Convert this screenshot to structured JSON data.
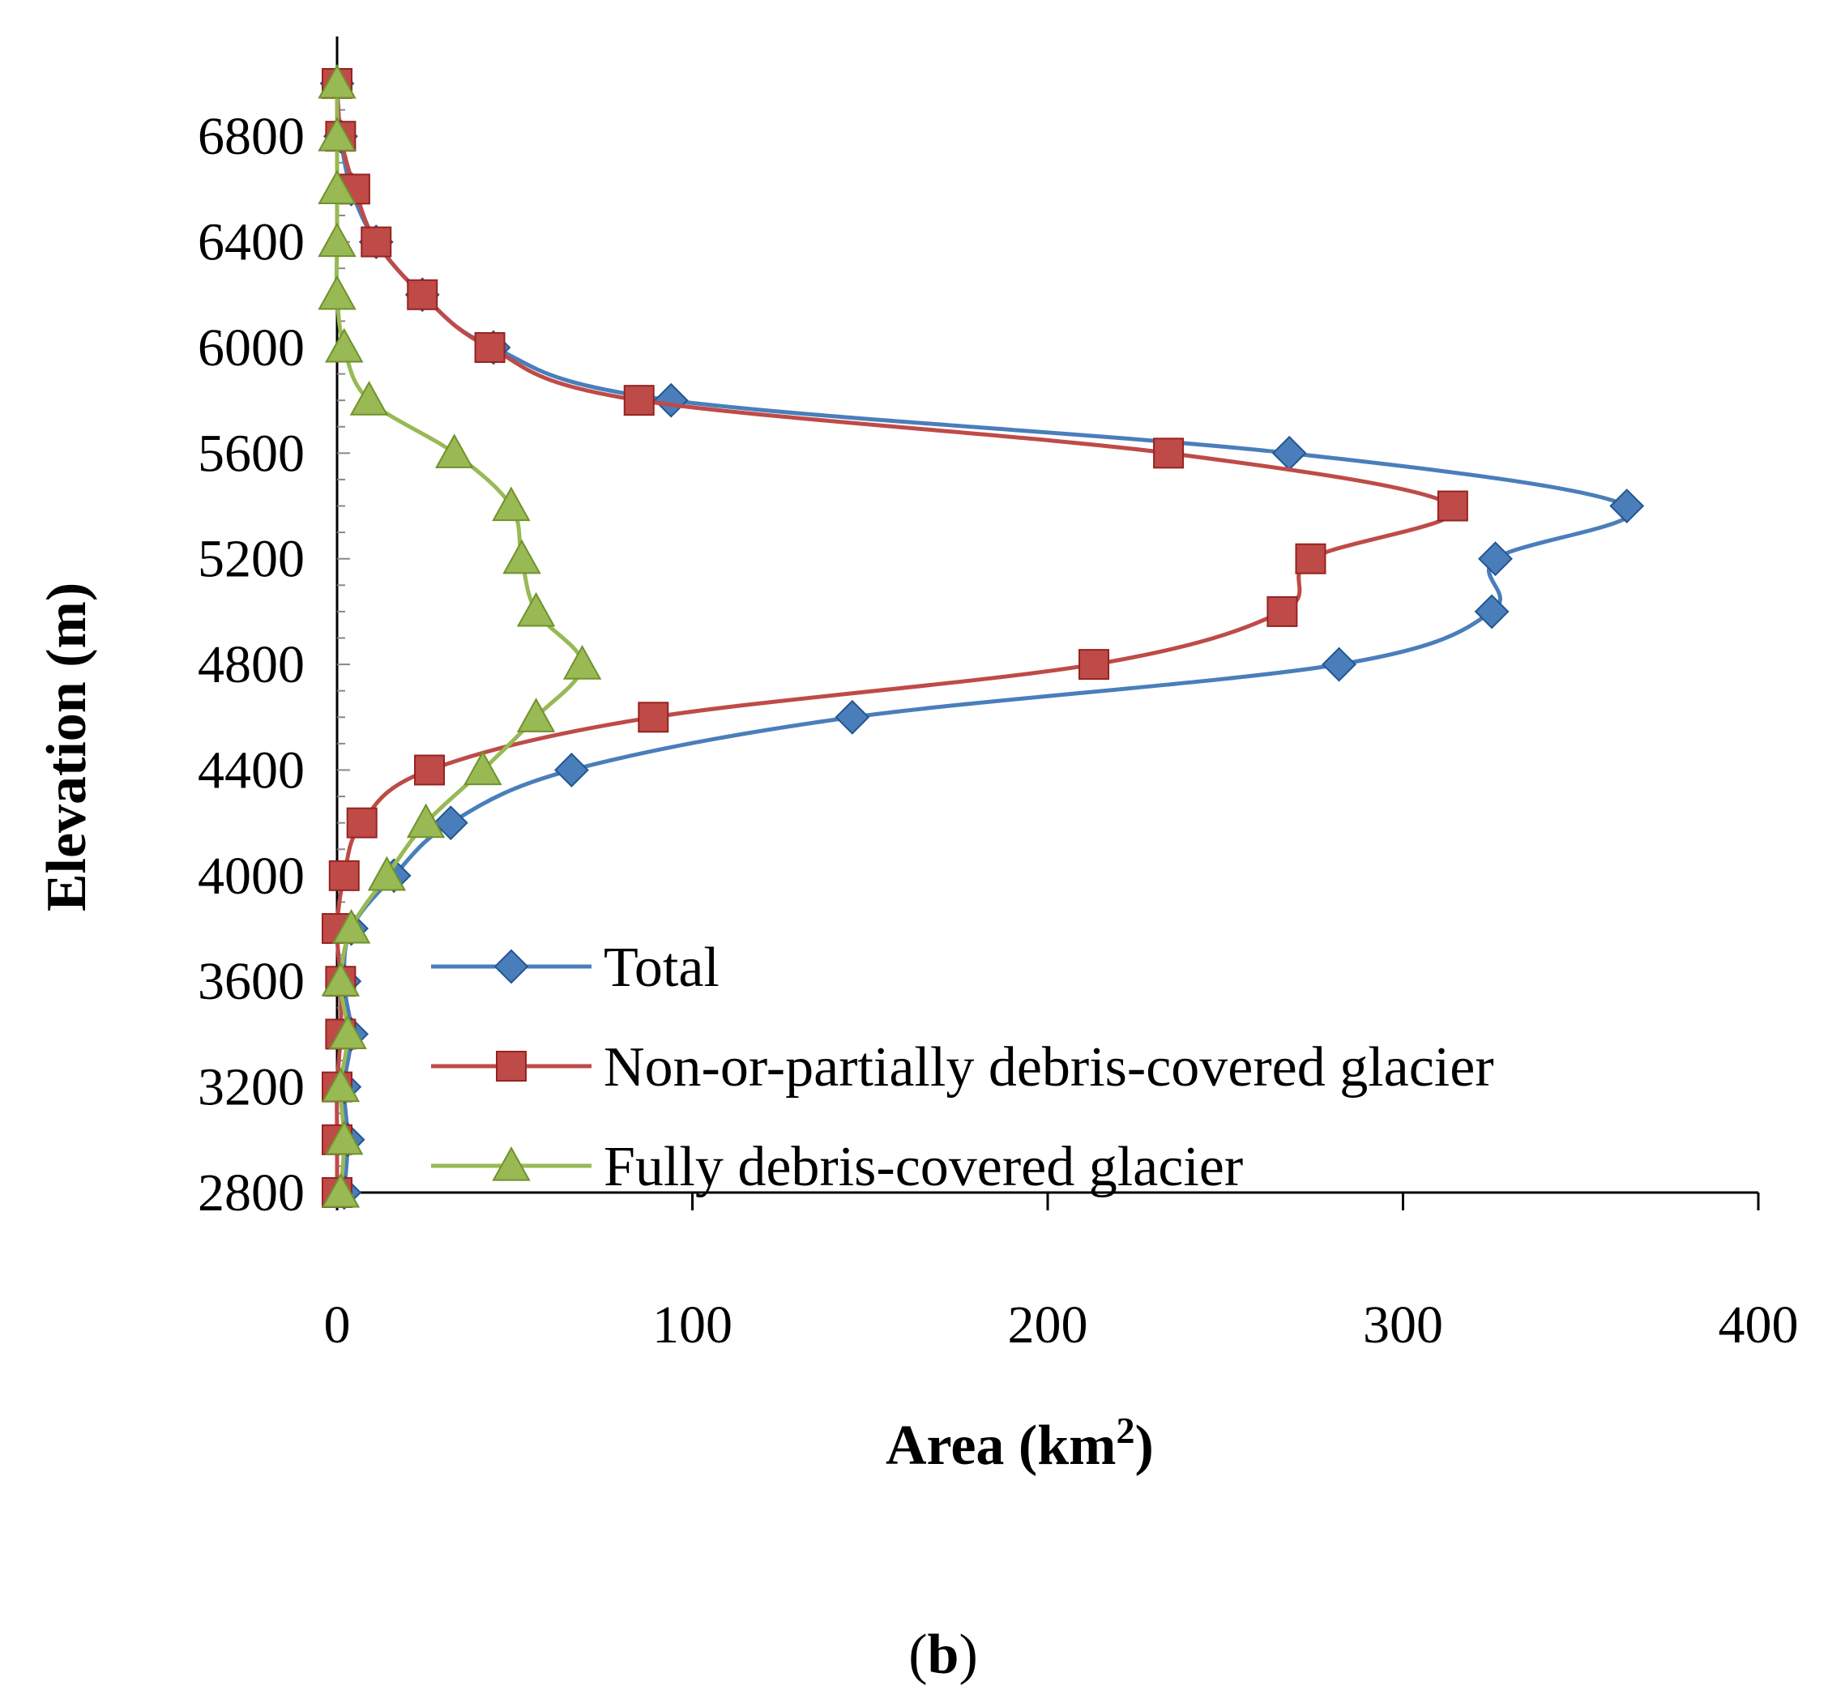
{
  "chart_data": {
    "type": "line",
    "orientation": "horizontal-profile",
    "panel_label_letter": "b",
    "xlabel_main": "Area (km",
    "xlabel_sup": "2",
    "xlabel_end": ")",
    "ylabel": "Elevation (m)",
    "xlim": [
      0,
      400
    ],
    "ylim": [
      2800,
      7000
    ],
    "x_ticks": [
      0,
      100,
      200,
      300,
      400
    ],
    "y_ticks": [
      2800,
      3200,
      3600,
      4000,
      4400,
      4800,
      5200,
      5600,
      6000,
      6400,
      6800
    ],
    "elevations": [
      2800,
      3000,
      3200,
      3400,
      3600,
      3800,
      4000,
      4200,
      4400,
      4600,
      4800,
      5000,
      5200,
      5400,
      5600,
      5800,
      6000,
      6200,
      6400,
      6600,
      6800,
      7000
    ],
    "legend_position": "center-right",
    "series": [
      {
        "name": "Total",
        "color": "#4a7ebb",
        "marker": "diamond",
        "values": [
          2,
          3,
          2,
          4,
          2,
          4,
          16,
          32,
          66,
          145,
          282,
          325,
          326,
          363,
          268,
          94,
          44,
          24,
          11,
          4,
          1,
          0
        ]
      },
      {
        "name": "Non-or-partially debris-covered glacier",
        "color": "#be4b48",
        "marker": "square",
        "values": [
          0,
          0,
          0,
          1,
          1,
          0,
          2,
          7,
          26,
          89,
          213,
          266,
          274,
          314,
          234,
          85,
          43,
          24,
          11,
          5,
          1,
          0
        ]
      },
      {
        "name": "Fully debris-covered glacier",
        "color": "#98b954",
        "marker": "triangle",
        "values": [
          1,
          2,
          1,
          3,
          1,
          4,
          14,
          25,
          41,
          56,
          69,
          56,
          52,
          49,
          33,
          9,
          2,
          0,
          0,
          0,
          0,
          0
        ]
      }
    ]
  }
}
